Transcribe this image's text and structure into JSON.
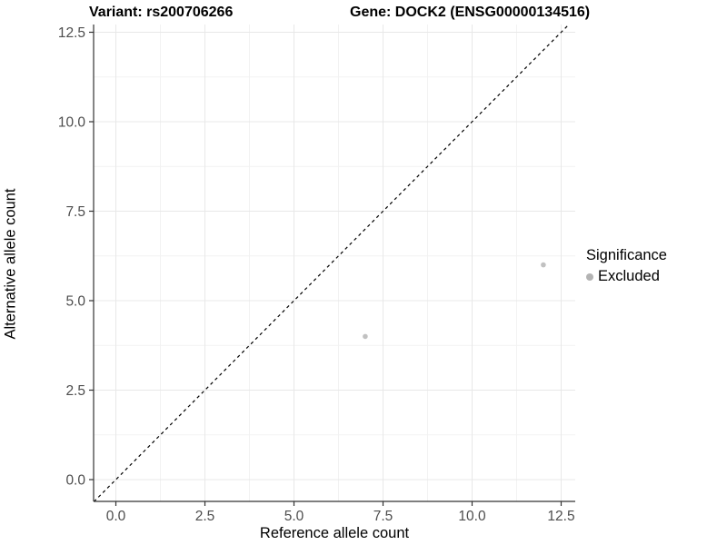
{
  "header": {
    "title_left": "Variant: rs200706266",
    "title_right": "Gene: DOCK2 (ENSG00000134516)"
  },
  "chart_data": {
    "type": "scatter",
    "title": "Variant: rs200706266    Gene: DOCK2 (ENSG00000134516)",
    "xlabel": "Reference allele count",
    "ylabel": "Alternative allele count",
    "xlim": [
      -0.625,
      12.9
    ],
    "ylim": [
      -0.625,
      12.75
    ],
    "ticks": [
      0.0,
      2.5,
      5.0,
      7.5,
      10.0,
      12.5
    ],
    "tick_labels": [
      "0.0",
      "2.5",
      "5.0",
      "7.5",
      "10.0",
      "12.5"
    ],
    "minor_ticks": [
      1.25,
      3.75,
      6.25,
      8.75,
      11.25
    ],
    "grid": "on",
    "points": [
      {
        "x": 7,
        "y": 4,
        "series": "Excluded"
      },
      {
        "x": 12,
        "y": 6,
        "series": "Excluded"
      }
    ],
    "reference_line": {
      "type": "identity",
      "slope": 1,
      "intercept": 0,
      "style": "dashed"
    },
    "legend": {
      "title": "Significance",
      "position": "right",
      "entries": [
        {
          "label": "Excluded",
          "color": "#b3b3b3"
        }
      ]
    },
    "colors": {
      "point": "#c1c1c1",
      "major_grid": "#e8e8e8",
      "minor_grid": "#f2f2f2",
      "axis_line": "#333333",
      "tick_label": "#4d4d4d",
      "reference_line": "#000000"
    }
  }
}
